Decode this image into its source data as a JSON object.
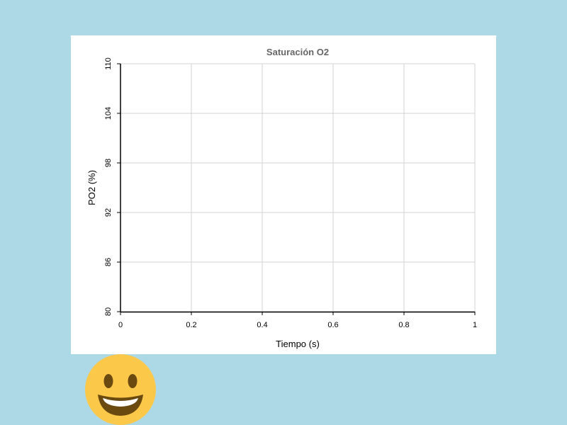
{
  "chart_data": {
    "type": "line",
    "title": "Saturación O2",
    "xlabel": "Tiempo (s)",
    "ylabel": "PO2 (%)",
    "xlim": [
      0,
      1
    ],
    "ylim": [
      80,
      110
    ],
    "x_ticks": [
      "0",
      "0.2",
      "0.4",
      "0.6",
      "0.8",
      "1"
    ],
    "y_ticks": [
      "80",
      "86",
      "92",
      "98",
      "104",
      "110"
    ],
    "grid": true,
    "series": [],
    "colors": {
      "grid": "#d3d3d3",
      "axis": "#000000",
      "title": "#666666"
    }
  },
  "mascot": {
    "icon": "smiley-face-icon",
    "face_color": "#fcc84a",
    "feature_color": "#6b4a10"
  }
}
